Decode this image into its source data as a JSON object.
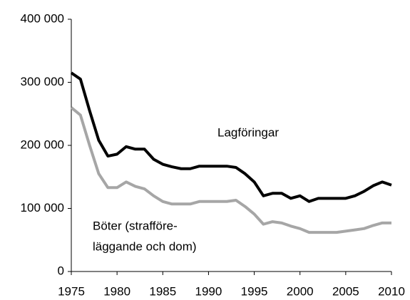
{
  "chart_data": {
    "type": "line",
    "x": [
      1975,
      1976,
      1977,
      1978,
      1979,
      1980,
      1981,
      1982,
      1983,
      1984,
      1985,
      1986,
      1987,
      1988,
      1989,
      1990,
      1991,
      1992,
      1993,
      1994,
      1995,
      1996,
      1997,
      1998,
      1999,
      2000,
      2001,
      2002,
      2003,
      2004,
      2005,
      2006,
      2007,
      2008,
      2009,
      2010
    ],
    "series": [
      {
        "color": "#000000",
        "values": [
          315000,
          305000,
          255000,
          208000,
          183000,
          186000,
          198000,
          194000,
          194000,
          178000,
          170000,
          166000,
          163000,
          163000,
          167000,
          167000,
          167000,
          167000,
          165000,
          155000,
          142000,
          120000,
          124000,
          124000,
          116000,
          120000,
          111000,
          116000,
          116000,
          116000,
          116000,
          120000,
          127000,
          136000,
          142000,
          137000
        ]
      },
      {
        "color": "#a6a6a6",
        "values": [
          260000,
          248000,
          200000,
          155000,
          133000,
          133000,
          142000,
          135000,
          131000,
          120000,
          111000,
          107000,
          107000,
          107000,
          111000,
          111000,
          111000,
          111000,
          113000,
          103000,
          91000,
          75000,
          79000,
          77000,
          72000,
          68000,
          62000,
          62000,
          62000,
          62000,
          64000,
          66000,
          68000,
          73000,
          77000,
          77000
        ]
      }
    ],
    "annotations": [
      "Lagföringar",
      "Böter (strafföre-",
      "läggande och dom)"
    ],
    "xlim": [
      1975,
      2010
    ],
    "xticks": [
      1975,
      1980,
      1985,
      1990,
      1995,
      2000,
      2005,
      2010
    ],
    "ylim": [
      0,
      400000
    ],
    "yticks": [
      0,
      {
        "value": 100000,
        "label": "100 000"
      },
      {
        "value": 200000,
        "label": "200 000"
      },
      {
        "value": 300000,
        "label": "300 000"
      },
      {
        "value": 400000,
        "label": "400 000"
      }
    ]
  }
}
